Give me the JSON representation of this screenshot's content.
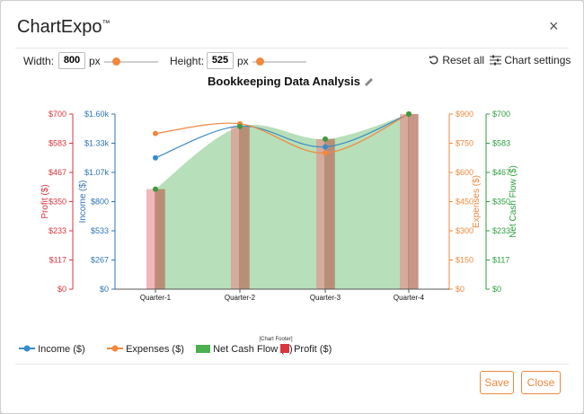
{
  "dialog": {
    "title": "ChartExpo",
    "trademark": "™",
    "close_glyph": "×"
  },
  "controls": {
    "width_label": "Width:",
    "width_value": "800",
    "width_unit": "px",
    "height_label": "Height:",
    "height_value": "525",
    "height_unit": "px",
    "reset_label": "Reset all",
    "settings_label": "Chart settings"
  },
  "chart_data": {
    "type": "combo",
    "title": "Bookkeeping Data Analysis",
    "categories": [
      "Quarter-1",
      "Quarter-2",
      "Quarter-3",
      "Quarter-4"
    ],
    "axes": {
      "profit": {
        "label": "Profit ($)",
        "ticks": [
          "$700",
          "$583",
          "$467",
          "$350",
          "$233",
          "$117",
          "$0"
        ],
        "range": [
          0,
          700
        ],
        "color": "#d9363e"
      },
      "income": {
        "label": "Income ($)",
        "ticks": [
          "$1.60k",
          "$1.33k",
          "$1.07k",
          "$800",
          "$533",
          "$267",
          "$0"
        ],
        "range": [
          0,
          1600
        ],
        "color": "#2e75b6"
      },
      "expenses": {
        "label": "Expenses ($)",
        "ticks": [
          "$900",
          "$750",
          "$600",
          "$450",
          "$300",
          "$150",
          "$0"
        ],
        "range": [
          0,
          900
        ],
        "color": "#f0883e"
      },
      "netcash": {
        "label": "Net Cash Flow ($)",
        "ticks": [
          "$700",
          "$583",
          "$467",
          "$350",
          "$233",
          "$117",
          "$0"
        ],
        "range": [
          0,
          700
        ],
        "color": "#2e9e3e"
      }
    },
    "series": [
      {
        "name": "Income ($)",
        "kind": "line",
        "axis": "income",
        "color": "#3a8cc8",
        "values": [
          1200,
          1490,
          1300,
          1600
        ]
      },
      {
        "name": "Expenses ($)",
        "kind": "line",
        "axis": "expenses",
        "color": "#f0883e",
        "values": [
          800,
          850,
          700,
          900
        ]
      },
      {
        "name": "Net Cash Flow ($)",
        "kind": "area",
        "axis": "netcash",
        "color": "#4caf50",
        "values": [
          400,
          650,
          600,
          700
        ]
      },
      {
        "name": "Profit ($)",
        "kind": "bar",
        "axis": "profit",
        "color": "#e8888b",
        "values": [
          400,
          650,
          600,
          700
        ]
      }
    ],
    "footer": "[Chart Footer]"
  },
  "buttons": {
    "save": "Save",
    "close": "Close"
  }
}
